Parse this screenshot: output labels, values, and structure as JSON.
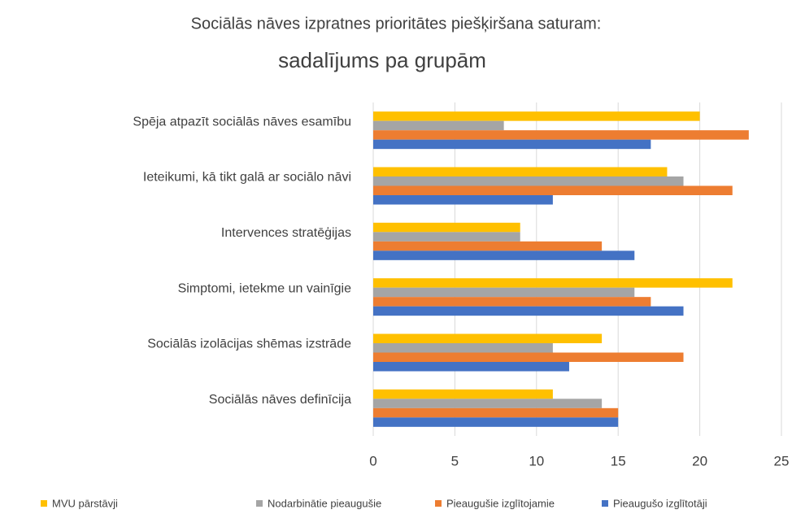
{
  "chart_data": {
    "type": "bar",
    "orientation": "horizontal",
    "title": "Sociālās nāves izpratnes prioritātes piešķiršana saturam:",
    "subtitle": "sadalījums pa grupām",
    "categories": [
      "Spēja atpazīt sociālās nāves esamību",
      "Ieteikumi, kā tikt galā ar sociālo nāvi",
      "Intervences stratēģijas",
      "Simptomi, ietekme un vainīgie",
      "Sociālās izolācijas shēmas izstrāde",
      "Sociālās nāves definīcija"
    ],
    "series": [
      {
        "name": "MVU pārstāvji",
        "color": "#ffc000",
        "values": [
          20,
          18,
          9,
          22,
          14,
          11
        ]
      },
      {
        "name": "Nodarbinātie pieaugušie",
        "color": "#a5a5a5",
        "values": [
          8,
          19,
          9,
          16,
          11,
          14
        ]
      },
      {
        "name": "Pieaugušie izglītojamie",
        "color": "#ed7d31",
        "values": [
          23,
          22,
          14,
          17,
          19,
          15
        ]
      },
      {
        "name": "Pieaugušo izglītotāji",
        "color": "#4472c4",
        "values": [
          17,
          11,
          16,
          19,
          12,
          15
        ]
      }
    ],
    "xlim": [
      0,
      25
    ],
    "xticks": [
      0,
      5,
      10,
      15,
      20,
      25
    ],
    "grid": true,
    "legend": "bottom"
  }
}
